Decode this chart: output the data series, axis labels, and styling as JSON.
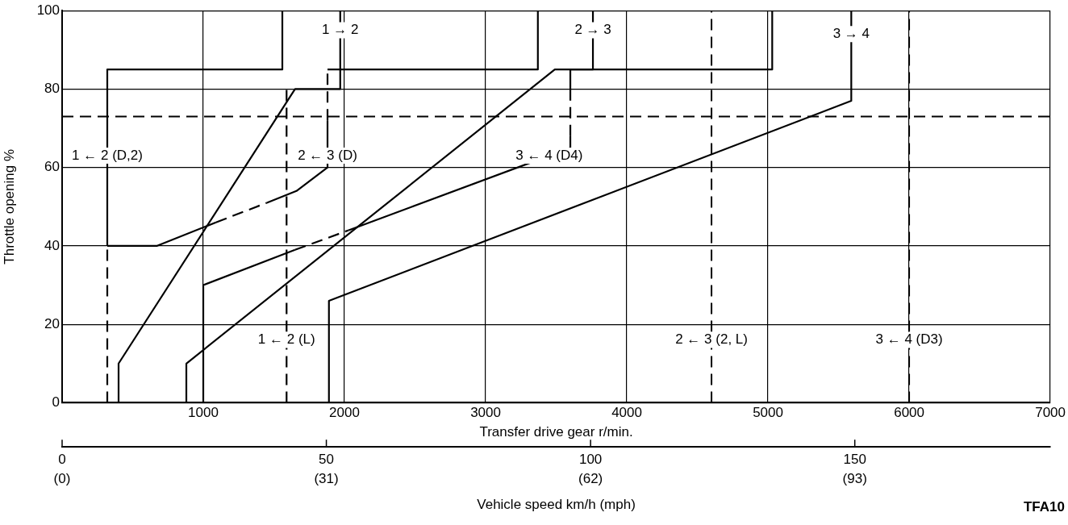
{
  "chart_data": {
    "type": "line",
    "xlabel": "Transfer drive gear r/min.",
    "ylabel": "Throttle opening %",
    "x2label": "Vehicle speed km/h (mph)",
    "xlim": [
      0,
      7000
    ],
    "xticks": [
      1000,
      2000,
      3000,
      4000,
      5000,
      6000,
      7000
    ],
    "ylim": [
      0,
      100
    ],
    "yticks": [
      0,
      20,
      40,
      60,
      80,
      100
    ],
    "x2lim": [
      0,
      187
    ],
    "x2ticks": [
      0,
      50,
      100,
      150
    ],
    "grid": true,
    "legend": false,
    "marker": "none",
    "series": [
      {
        "color": "#000000",
        "x": [
          320,
          320,
          1560,
          1560
        ],
        "values": [
          40,
          85,
          85,
          100
        ]
      },
      {
        "color": "#000000",
        "line_style": "dashed",
        "x": [
          320,
          320
        ],
        "values": [
          0,
          40
        ]
      },
      {
        "color": "#000000",
        "x": [
          400,
          400,
          1650,
          1970,
          1970
        ],
        "values": [
          0,
          10,
          80,
          80,
          100
        ]
      },
      {
        "color": "#000000",
        "x": [
          320,
          670,
          1090
        ],
        "values": [
          40,
          40,
          46
        ]
      },
      {
        "color": "#000000",
        "line_style": "dashed",
        "x": [
          1090,
          1450
        ],
        "values": [
          46,
          51
        ]
      },
      {
        "color": "#000000",
        "x": [
          1450,
          1660,
          1880,
          1880
        ],
        "values": [
          51,
          54,
          60,
          72
        ]
      },
      {
        "color": "#000000",
        "line_style": "dashed",
        "x": [
          1880,
          1880
        ],
        "values": [
          72,
          85
        ]
      },
      {
        "color": "#000000",
        "x": [
          1880,
          3370,
          3370
        ],
        "values": [
          85,
          85,
          100
        ]
      },
      {
        "color": "#000000",
        "x": [
          880,
          880,
          3490,
          3760,
          3760
        ],
        "values": [
          0,
          10,
          85,
          85,
          100
        ]
      },
      {
        "color": "#000000",
        "x": [
          1000,
          1000,
          1650
        ],
        "values": [
          0,
          30,
          39
        ]
      },
      {
        "color": "#000000",
        "line_style": "dashed",
        "x": [
          1650,
          2030
        ],
        "values": [
          39,
          44
        ]
      },
      {
        "color": "#000000",
        "x": [
          2030,
          3600,
          3600
        ],
        "values": [
          44,
          65,
          68
        ]
      },
      {
        "color": "#000000",
        "line_style": "dashed",
        "x": [
          3600,
          3600
        ],
        "values": [
          68,
          80
        ]
      },
      {
        "color": "#000000",
        "x": [
          3600,
          3600,
          5030,
          5030
        ],
        "values": [
          80,
          85,
          85,
          100
        ]
      },
      {
        "color": "#000000",
        "x": [
          1890,
          1890,
          5590,
          5590
        ],
        "values": [
          0,
          26,
          77,
          100
        ]
      },
      {
        "color": "#000000",
        "line_style": "dashed",
        "x": [
          1590,
          1590
        ],
        "values": [
          0,
          80
        ]
      }
    ],
    "ref_lines": [
      {
        "axis": "y",
        "value": 73,
        "color": "#000000",
        "line_style": "dashed"
      },
      {
        "axis": "x",
        "value": 4600,
        "color": "#000000",
        "line_style": "dashed"
      },
      {
        "axis": "x",
        "value": 6000,
        "color": "#000000",
        "line_style": "dashed"
      }
    ],
    "annotations": [
      {
        "text": "1 → 2",
        "x": 1970,
        "y": 95
      },
      {
        "text": "2 → 3",
        "x": 3760,
        "y": 95
      },
      {
        "text": "3 → 4",
        "x": 5590,
        "y": 94
      },
      {
        "text": "1 ← 2 (D,2)",
        "x": 320,
        "y": 63
      },
      {
        "text": "2 ← 3 (D)",
        "x": 1880,
        "y": 63
      },
      {
        "text": "3 ← 4 (D4)",
        "x": 3450,
        "y": 63
      },
      {
        "text": "1 ← 2 (L)",
        "x": 1590,
        "y": 16
      },
      {
        "text": "2 ← 3 (2, L)",
        "x": 4600,
        "y": 16
      },
      {
        "text": "3 ← 4 (D3)",
        "x": 6000,
        "y": 16
      },
      "(0)",
      "(31)",
      "(62)",
      "(93)",
      "TFA10"
    ]
  }
}
